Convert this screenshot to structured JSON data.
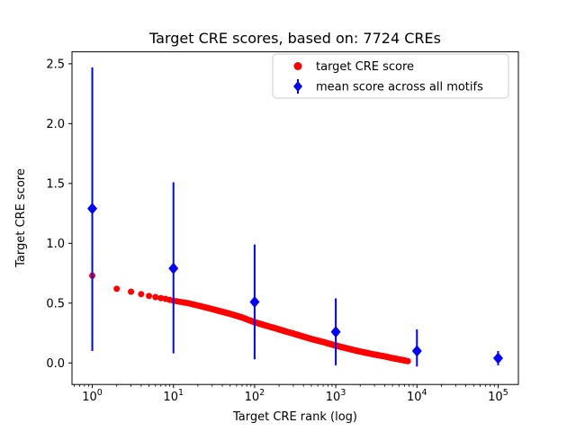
{
  "chart_data": {
    "type": "scatter",
    "title": "Target CRE scores, based on: 7724 CREs",
    "xlabel": "Target CRE rank (log)",
    "ylabel": "Target CRE score",
    "x_scale": "log",
    "xlim_log": [
      -0.25,
      5.25
    ],
    "ylim": [
      -0.18,
      2.6
    ],
    "x_tick_exponents": [
      0,
      1,
      2,
      3,
      4,
      5
    ],
    "y_ticks": [
      0.0,
      0.5,
      1.0,
      1.5,
      2.0,
      2.5
    ],
    "grid": false,
    "legend_position": "upper right",
    "series": [
      {
        "name": "target CRE score",
        "marker": "circle",
        "color": "#ff0000",
        "n_total": 7724,
        "rank_score_anchors": [
          [
            1,
            0.73
          ],
          [
            2,
            0.62
          ],
          [
            3,
            0.595
          ],
          [
            4,
            0.575
          ],
          [
            5,
            0.56
          ],
          [
            6,
            0.55
          ],
          [
            8,
            0.535
          ],
          [
            10,
            0.52
          ],
          [
            15,
            0.5
          ],
          [
            20,
            0.48
          ],
          [
            30,
            0.45
          ],
          [
            50,
            0.41
          ],
          [
            70,
            0.38
          ],
          [
            100,
            0.34
          ],
          [
            150,
            0.305
          ],
          [
            200,
            0.28
          ],
          [
            300,
            0.245
          ],
          [
            500,
            0.2
          ],
          [
            700,
            0.175
          ],
          [
            1000,
            0.145
          ],
          [
            1500,
            0.115
          ],
          [
            2000,
            0.095
          ],
          [
            3000,
            0.07
          ],
          [
            4000,
            0.055
          ],
          [
            5000,
            0.04
          ],
          [
            6000,
            0.03
          ],
          [
            7724,
            0.015
          ]
        ]
      },
      {
        "name": "mean score across all motifs",
        "marker": "diamond",
        "color": "#0000ff",
        "x": [
          1,
          10,
          100,
          1000,
          10000,
          100000
        ],
        "mean": [
          1.29,
          0.79,
          0.51,
          0.26,
          0.1,
          0.04
        ],
        "err_low": [
          0.1,
          0.08,
          0.03,
          -0.02,
          -0.03,
          -0.02
        ],
        "err_high": [
          2.47,
          1.51,
          0.99,
          0.54,
          0.28,
          0.1
        ]
      }
    ]
  },
  "colors": {
    "red": "#ff0000",
    "blue": "#0000ff",
    "axis": "#000000",
    "legend_border": "#cccccc",
    "background": "#ffffff"
  }
}
